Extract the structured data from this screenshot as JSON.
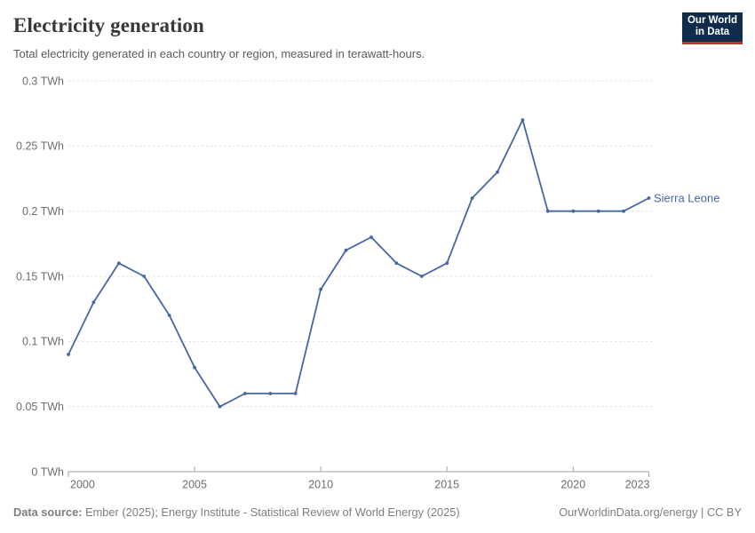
{
  "header": {
    "title": "Electricity generation",
    "subtitle": "Total electricity generated in each country or region, measured in terawatt-hours."
  },
  "logo": {
    "line1": "Our World",
    "line2": "in Data"
  },
  "chart_data": {
    "type": "line",
    "title": "Electricity generation",
    "unit": "TWh",
    "x": [
      2000,
      2001,
      2002,
      2003,
      2004,
      2005,
      2006,
      2007,
      2008,
      2009,
      2010,
      2011,
      2012,
      2013,
      2014,
      2015,
      2016,
      2017,
      2018,
      2019,
      2020,
      2021,
      2022,
      2023
    ],
    "series": [
      {
        "name": "Sierra Leone",
        "values": [
          0.09,
          0.13,
          0.16,
          0.15,
          0.12,
          0.08,
          0.05,
          0.06,
          0.06,
          0.06,
          0.14,
          0.17,
          0.18,
          0.16,
          0.15,
          0.16,
          0.21,
          0.23,
          0.27,
          0.2,
          0.2,
          0.2,
          0.2,
          0.21
        ]
      }
    ],
    "xlim": [
      2000,
      2023
    ],
    "ylim": [
      0,
      0.3
    ],
    "yticks": [
      {
        "value": 0,
        "label": "0 TWh"
      },
      {
        "value": 0.05,
        "label": "0.05 TWh"
      },
      {
        "value": 0.1,
        "label": "0.1 TWh"
      },
      {
        "value": 0.15,
        "label": "0.15 TWh"
      },
      {
        "value": 0.2,
        "label": "0.2 TWh"
      },
      {
        "value": 0.25,
        "label": "0.25 TWh"
      },
      {
        "value": 0.3,
        "label": "0.3 TWh"
      }
    ],
    "xticks": [
      {
        "value": 2000,
        "label": "2000"
      },
      {
        "value": 2005,
        "label": "2005"
      },
      {
        "value": 2010,
        "label": "2010"
      },
      {
        "value": 2015,
        "label": "2015"
      },
      {
        "value": 2020,
        "label": "2020"
      },
      {
        "value": 2023,
        "label": "2023"
      }
    ],
    "grid": "horizontal-dashed",
    "legend_position": "end-of-line"
  },
  "footer": {
    "source_label": "Data source:",
    "source_text": " Ember (2025); Energy Institute - Statistical Review of World Energy (2025)",
    "credit": "OurWorldinData.org/energy | CC BY"
  },
  "colors": {
    "line": "#4767a3",
    "logo_bg": "#102c4d",
    "logo_accent": "#c5302b",
    "grid": "#e2e2e2",
    "axis": "#a3a3a3",
    "tick_text": "#6d6d6d"
  }
}
